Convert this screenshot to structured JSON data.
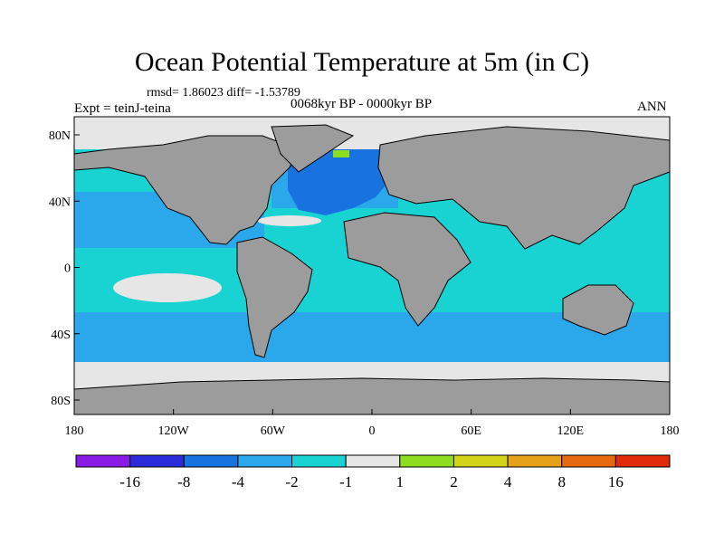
{
  "title": "Ocean Potential Temperature at 5m (in C)",
  "stats_text": "rmsd= 1.86023 diff= -1.53789",
  "experiment_text": "Expt = teinJ-teina",
  "period_text": "0068kyr BP - 0000kyr BP",
  "season_text": "ANN",
  "x_ticks": [
    "180",
    "120W",
    "60W",
    "0",
    "60E",
    "120E",
    "180"
  ],
  "y_ticks": [
    "80N",
    "40N",
    "0",
    "40S",
    "80S"
  ],
  "colorbar": {
    "labels": [
      "-16",
      "-8",
      "-4",
      "-2",
      "-1",
      "1",
      "2",
      "4",
      "8",
      "16"
    ],
    "colors": [
      "#8a1be6",
      "#2b2bd9",
      "#1873e0",
      "#2aa8eb",
      "#19d3d3",
      "#e6e6e6",
      "#8ede1f",
      "#d3d31a",
      "#e6a01a",
      "#e6680f",
      "#e02a0a"
    ]
  },
  "colors": {
    "land": "#9c9c9c",
    "ice": "#e6e6e6",
    "ocean_default": "#19d3d3",
    "cool_band": "#2aa8eb",
    "north_atlantic": "#1873e0",
    "warm_patch": "#8ede1f"
  }
}
